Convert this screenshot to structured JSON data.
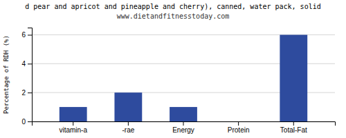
{
  "chart_data": {
    "type": "bar",
    "title": "d pear and apricot and pineapple and cherry), canned, water pack, solid",
    "subtitle": "www.dietandfitnesstoday.com",
    "categories": [
      "vitamin-a",
      "-rae",
      "Energy",
      "Protein",
      "Total-Fat"
    ],
    "values": [
      1.0,
      2.0,
      1.0,
      0.0,
      6.0
    ],
    "color": "#2e4b9e",
    "y_label": "Percentage of RDH (%)",
    "ylim": [
      0,
      6.5
    ],
    "yticks": [
      0,
      2,
      4,
      6
    ],
    "grid": true
  }
}
